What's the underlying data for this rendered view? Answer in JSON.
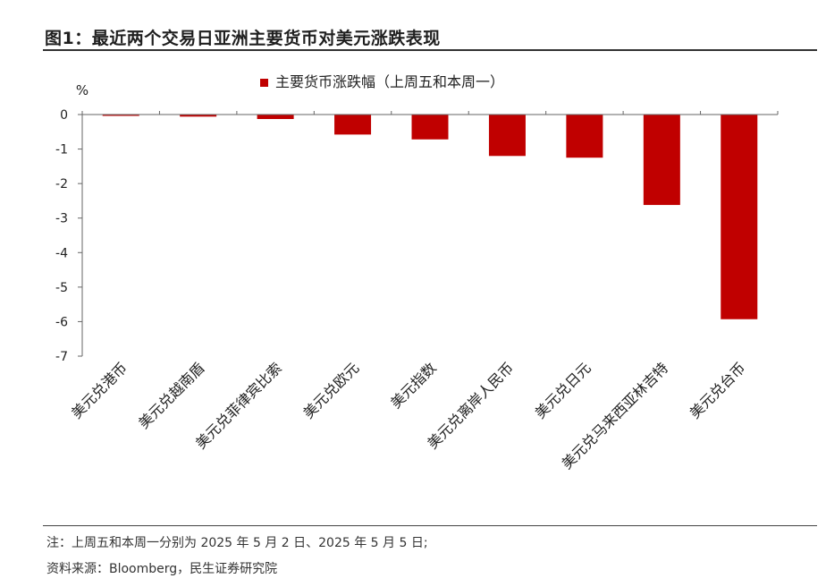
{
  "figure": {
    "title": "图1：最近两个交易日亚洲主要货币对美元涨跌表现",
    "note": "注：上周五和本周一分别为 2025 年 5 月 2 日、2025 年 5 月 5 日;",
    "source": "资料来源：Bloomberg，民生证券研究院"
  },
  "chart_data": {
    "type": "bar",
    "title": "",
    "xlabel": "",
    "ylabel": "%",
    "ylim": [
      -7,
      0
    ],
    "yticks": [
      "0",
      "-1",
      "-2",
      "-3",
      "-4",
      "-5",
      "-6",
      "-7"
    ],
    "grid": false,
    "legend_position": "top-center",
    "categories": [
      "美元兑港币",
      "美元兑越南盾",
      "美元兑菲律宾比索",
      "美元兑欧元",
      "美元指数",
      "美元兑离岸人民币",
      "美元兑日元",
      "美元兑马来西亚林吉特",
      "美元兑台币"
    ],
    "series": [
      {
        "name": "主要货币涨跌幅（上周五和本周一）",
        "color": "#c00000",
        "values": [
          -0.03,
          -0.06,
          -0.13,
          -0.58,
          -0.72,
          -1.2,
          -1.25,
          -2.62,
          -5.93
        ]
      }
    ]
  }
}
